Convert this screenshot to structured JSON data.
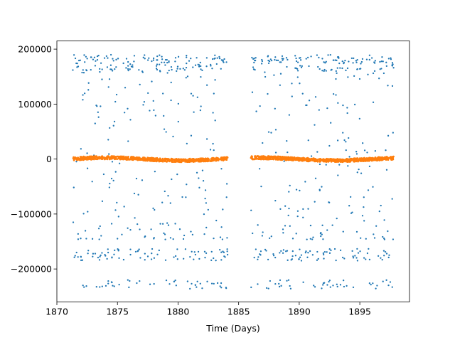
{
  "chart_data": {
    "type": "scatter",
    "title": "",
    "xlabel": "Time (Days)",
    "ylabel": "",
    "xlim": [
      1870,
      1891
    ],
    "ylim": [
      -260000,
      215000
    ],
    "xticks": [
      1870,
      1875,
      1880,
      1885,
      1890,
      1895
    ],
    "yticks": [
      -200000,
      -100000,
      0,
      100000,
      200000
    ],
    "xtick_labels": [
      "1870",
      "1875",
      "1880",
      "1885",
      "1890",
      "1895"
    ],
    "ytick_labels": [
      "−200000",
      "−100000",
      "0",
      "100000",
      "200000"
    ],
    "grid": false,
    "legend": "none",
    "gap": [
      1884.1,
      1886.0
    ],
    "series": [
      {
        "color": "#1f77b4",
        "x_range": [
          1871.3,
          1897.8
        ],
        "y_range": [
          -240000,
          190000
        ],
        "bands": [
          175000,
          165000,
          -175000,
          -180000,
          -225000,
          -232000
        ],
        "approx_points": 900
      },
      {
        "color": "#ff7f0e",
        "x_range": [
          1871.3,
          1897.8
        ],
        "y_range": [
          -8000,
          6000
        ],
        "mean": 0,
        "approx_points": 1400
      }
    ]
  }
}
